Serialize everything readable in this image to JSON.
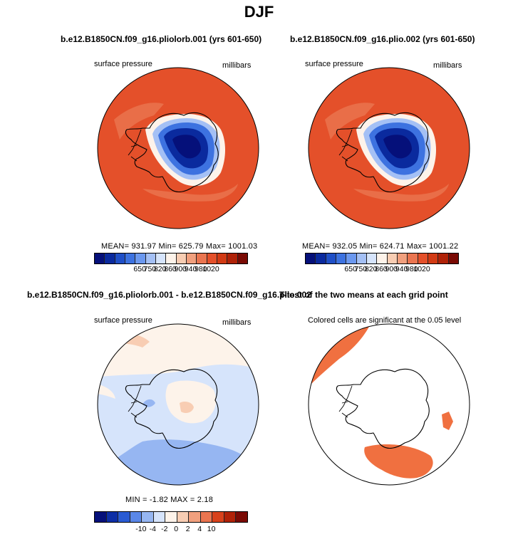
{
  "title": "DJF",
  "panels": [
    {
      "title": "b.e12.B1850CN.f09_g16.pliolorb.001 (yrs 601-650)",
      "left_label": "surface pressure",
      "right_label": "millibars",
      "stats": "MEAN= 931.97   Min= 625.79   Max= 1001.03"
    },
    {
      "title": "b.e12.B1850CN.f09_g16.plio.002 (yrs 601-650)",
      "left_label": "surface pressure",
      "right_label": "millibars",
      "stats": "MEAN= 932.05   Min= 624.71   Max= 1001.22"
    },
    {
      "title": "b.e12.B1850CN.f09_g16.pliolorb.001 - b.e12.B1850CN.f09_g16.plio.002",
      "left_label": "surface pressure",
      "right_label": "millibars",
      "stats": "MIN =   -1.82  MAX =    2.18"
    },
    {
      "title": "T-test of the two means at each grid point",
      "left_label": "Colored cells are significant at the 0.05 level",
      "right_label": ""
    }
  ],
  "colorbar_top": {
    "ticks": [
      "650",
      "750",
      "820",
      "860",
      "900",
      "940",
      "980",
      "1020"
    ],
    "colors": [
      "#05107a",
      "#0a2a9e",
      "#1f4fc7",
      "#3d72e0",
      "#6b98ef",
      "#a4c0f5",
      "#d6e4fb",
      "#fdf3ea",
      "#f8cdb3",
      "#f1a07e",
      "#ea7550",
      "#e4502a",
      "#d23a14",
      "#b02208",
      "#7a0a04"
    ]
  },
  "colorbar_diff": {
    "ticks": [
      "-10",
      "-4",
      "-2",
      "0",
      "2",
      "4",
      "10"
    ],
    "colors": [
      "#05107a",
      "#0d2ea6",
      "#2a5bd3",
      "#5a87e8",
      "#96b6f2",
      "#d6e4fb",
      "#fdf3ea",
      "#f8cdb3",
      "#f1a07e",
      "#ea7550",
      "#d8421c",
      "#b02208",
      "#7a0a04"
    ]
  },
  "chart_data": [
    {
      "type": "heatmap",
      "title": "b.e12.B1850CN.f09_g16.pliolorb.001 (yrs 601-650)",
      "variable": "surface pressure",
      "units": "millibars",
      "mean": 931.97,
      "min": 625.79,
      "max": 1001.03,
      "levels": [
        650,
        750,
        820,
        860,
        900,
        940,
        980,
        1020
      ]
    },
    {
      "type": "heatmap",
      "title": "b.e12.B1850CN.f09_g16.plio.002 (yrs 601-650)",
      "variable": "surface pressure",
      "units": "millibars",
      "mean": 932.05,
      "min": 624.71,
      "max": 1001.22,
      "levels": [
        650,
        750,
        820,
        860,
        900,
        940,
        980,
        1020
      ]
    },
    {
      "type": "heatmap",
      "title": "b.e12.B1850CN.f09_g16.pliolorb.001 - b.e12.B1850CN.f09_g16.plio.002",
      "variable": "surface pressure",
      "units": "millibars",
      "min": -1.82,
      "max": 2.18,
      "levels": [
        -10,
        -4,
        -2,
        0,
        2,
        4,
        10
      ]
    },
    {
      "type": "heatmap",
      "title": "T-test of the two means at each grid point",
      "note": "Colored cells are significant at the 0.05 level"
    }
  ]
}
